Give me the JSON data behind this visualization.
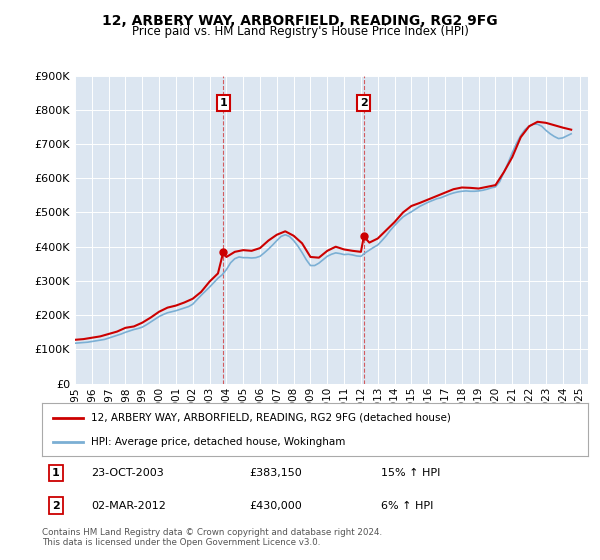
{
  "title": "12, ARBERY WAY, ARBORFIELD, READING, RG2 9FG",
  "subtitle": "Price paid vs. HM Land Registry's House Price Index (HPI)",
  "ylim": [
    0,
    900000
  ],
  "xlim_start": 1995.0,
  "xlim_end": 2025.5,
  "sale1": {
    "date_num": 2003.81,
    "price": 383150,
    "label": "1",
    "text": "23-OCT-2003",
    "price_str": "£383,150",
    "pct": "15% ↑ HPI"
  },
  "sale2": {
    "date_num": 2012.17,
    "price": 430000,
    "label": "2",
    "text": "02-MAR-2012",
    "price_str": "£430,000",
    "pct": "6% ↑ HPI"
  },
  "red_color": "#cc0000",
  "blue_color": "#7bafd4",
  "bg_color": "#dce6f1",
  "legend_label_red": "12, ARBERY WAY, ARBORFIELD, READING, RG2 9FG (detached house)",
  "legend_label_blue": "HPI: Average price, detached house, Wokingham",
  "footer": "Contains HM Land Registry data © Crown copyright and database right 2024.\nThis data is licensed under the Open Government Licence v3.0.",
  "hpi_years": [
    1995.0,
    1995.25,
    1995.5,
    1995.75,
    1996.0,
    1996.25,
    1996.5,
    1996.75,
    1997.0,
    1997.25,
    1997.5,
    1997.75,
    1998.0,
    1998.25,
    1998.5,
    1998.75,
    1999.0,
    1999.25,
    1999.5,
    1999.75,
    2000.0,
    2000.25,
    2000.5,
    2000.75,
    2001.0,
    2001.25,
    2001.5,
    2001.75,
    2002.0,
    2002.25,
    2002.5,
    2002.75,
    2003.0,
    2003.25,
    2003.5,
    2003.75,
    2004.0,
    2004.25,
    2004.5,
    2004.75,
    2005.0,
    2005.25,
    2005.5,
    2005.75,
    2006.0,
    2006.25,
    2006.5,
    2006.75,
    2007.0,
    2007.25,
    2007.5,
    2007.75,
    2008.0,
    2008.25,
    2008.5,
    2008.75,
    2009.0,
    2009.25,
    2009.5,
    2009.75,
    2010.0,
    2010.25,
    2010.5,
    2010.75,
    2011.0,
    2011.25,
    2011.5,
    2011.75,
    2012.0,
    2012.25,
    2012.5,
    2012.75,
    2013.0,
    2013.25,
    2013.5,
    2013.75,
    2014.0,
    2014.25,
    2014.5,
    2014.75,
    2015.0,
    2015.25,
    2015.5,
    2015.75,
    2016.0,
    2016.25,
    2016.5,
    2016.75,
    2017.0,
    2017.25,
    2017.5,
    2017.75,
    2018.0,
    2018.25,
    2018.5,
    2018.75,
    2019.0,
    2019.25,
    2019.5,
    2019.75,
    2020.0,
    2020.25,
    2020.5,
    2020.75,
    2021.0,
    2021.25,
    2021.5,
    2021.75,
    2022.0,
    2022.25,
    2022.5,
    2022.75,
    2023.0,
    2023.25,
    2023.5,
    2023.75,
    2024.0,
    2024.25,
    2024.5
  ],
  "hpi_values": [
    118000,
    119000,
    120000,
    121000,
    123000,
    125000,
    127000,
    129000,
    133000,
    137000,
    141000,
    145000,
    150000,
    154000,
    158000,
    161000,
    165000,
    172000,
    180000,
    188000,
    196000,
    202000,
    207000,
    210000,
    213000,
    217000,
    221000,
    225000,
    232000,
    245000,
    258000,
    270000,
    282000,
    295000,
    308000,
    318000,
    333000,
    353000,
    365000,
    370000,
    368000,
    368000,
    367000,
    368000,
    372000,
    382000,
    393000,
    405000,
    418000,
    430000,
    435000,
    430000,
    418000,
    402000,
    383000,
    362000,
    345000,
    345000,
    352000,
    362000,
    372000,
    378000,
    382000,
    380000,
    377000,
    378000,
    376000,
    373000,
    372000,
    382000,
    390000,
    398000,
    405000,
    418000,
    432000,
    448000,
    462000,
    475000,
    487000,
    495000,
    502000,
    510000,
    518000,
    524000,
    530000,
    535000,
    540000,
    543000,
    548000,
    553000,
    557000,
    560000,
    562000,
    563000,
    562000,
    562000,
    563000,
    565000,
    568000,
    572000,
    575000,
    590000,
    618000,
    645000,
    675000,
    702000,
    725000,
    742000,
    752000,
    758000,
    758000,
    752000,
    740000,
    730000,
    722000,
    716000,
    718000,
    724000,
    730000
  ],
  "red_years": [
    1995.0,
    1995.5,
    1996.0,
    1996.5,
    1997.0,
    1997.5,
    1998.0,
    1998.5,
    1999.0,
    1999.5,
    2000.0,
    2000.5,
    2001.0,
    2001.5,
    2002.0,
    2002.5,
    2003.0,
    2003.5,
    2003.81,
    2004.0,
    2004.5,
    2005.0,
    2005.5,
    2006.0,
    2006.5,
    2007.0,
    2007.5,
    2008.0,
    2008.5,
    2009.0,
    2009.5,
    2010.0,
    2010.5,
    2011.0,
    2011.5,
    2012.0,
    2012.17,
    2012.5,
    2013.0,
    2013.5,
    2014.0,
    2014.5,
    2015.0,
    2015.5,
    2016.0,
    2016.5,
    2017.0,
    2017.5,
    2018.0,
    2018.5,
    2019.0,
    2019.5,
    2020.0,
    2020.5,
    2021.0,
    2021.5,
    2022.0,
    2022.5,
    2023.0,
    2023.5,
    2024.0,
    2024.5
  ],
  "red_values": [
    128000,
    130000,
    134000,
    138000,
    145000,
    152000,
    163000,
    167000,
    178000,
    193000,
    210000,
    222000,
    228000,
    237000,
    248000,
    268000,
    298000,
    322000,
    383150,
    370000,
    385000,
    390000,
    388000,
    396000,
    418000,
    435000,
    445000,
    432000,
    410000,
    370000,
    368000,
    388000,
    400000,
    392000,
    388000,
    385000,
    430000,
    412000,
    424000,
    448000,
    472000,
    500000,
    519000,
    528000,
    538000,
    548000,
    558000,
    568000,
    573000,
    572000,
    570000,
    575000,
    580000,
    618000,
    662000,
    720000,
    752000,
    765000,
    762000,
    755000,
    748000,
    742000
  ]
}
